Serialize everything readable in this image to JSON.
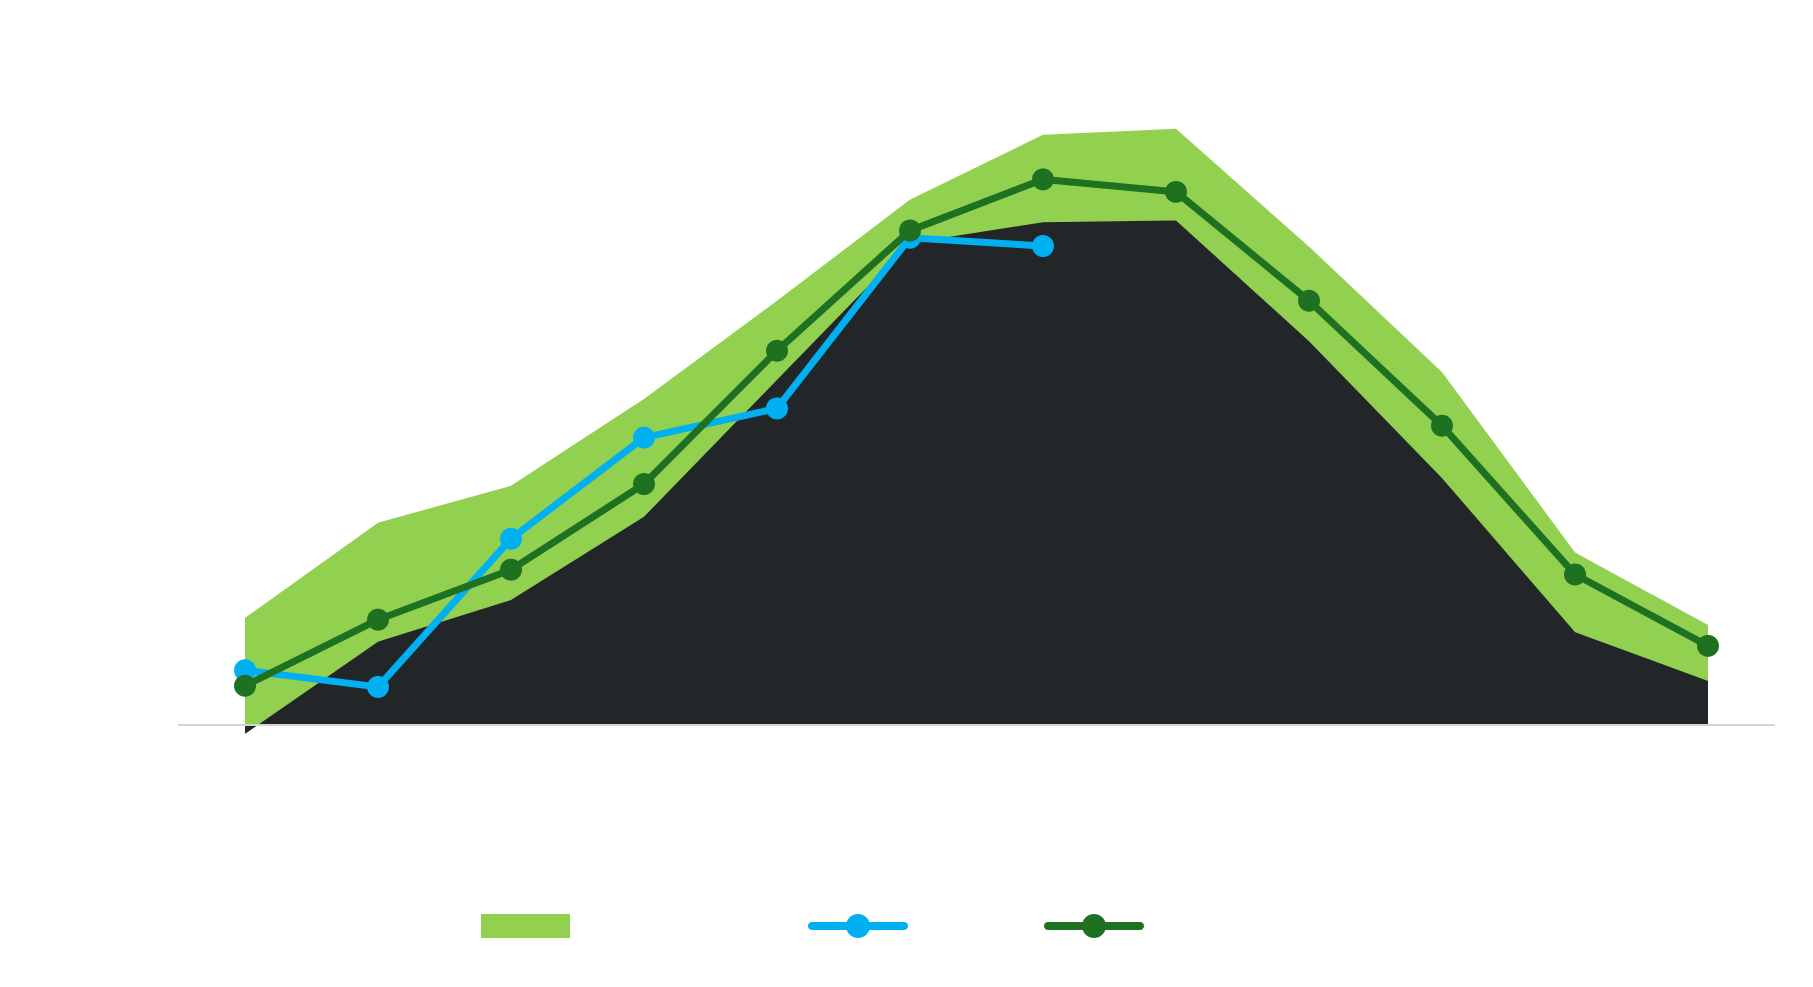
{
  "chart_data": {
    "type": "line",
    "title": "",
    "xlabel": "",
    "ylabel": "",
    "grid": false,
    "legend_position": "bottom",
    "x": [
      1,
      2,
      3,
      4,
      5,
      6,
      7,
      8,
      9,
      10,
      11,
      12
    ],
    "ylim": [
      0,
      100
    ],
    "band": {
      "name": "",
      "color": "#92d050",
      "base_color": "#222629",
      "lower": [
        -1.5,
        14,
        21,
        35,
        58,
        81,
        84.5,
        84.8,
        64.5,
        41.5,
        15.6,
        7.4
      ],
      "upper": [
        18,
        34,
        40.2,
        54.8,
        71.3,
        88.3,
        99.2,
        100.2,
        80.4,
        59.3,
        29,
        16.8
      ]
    },
    "series": [
      {
        "name": "",
        "color": "#00b0f0",
        "values": [
          9.2,
          6.4,
          31.3,
          48.3,
          53.2,
          81.9,
          80.5,
          null,
          null,
          null,
          null,
          null
        ]
      },
      {
        "name": "",
        "color": "#1e7121",
        "values": [
          6.6,
          17.7,
          26.1,
          40.5,
          62.9,
          83.1,
          91.7,
          89.6,
          71.3,
          50.3,
          25.3,
          13.3
        ]
      }
    ]
  }
}
